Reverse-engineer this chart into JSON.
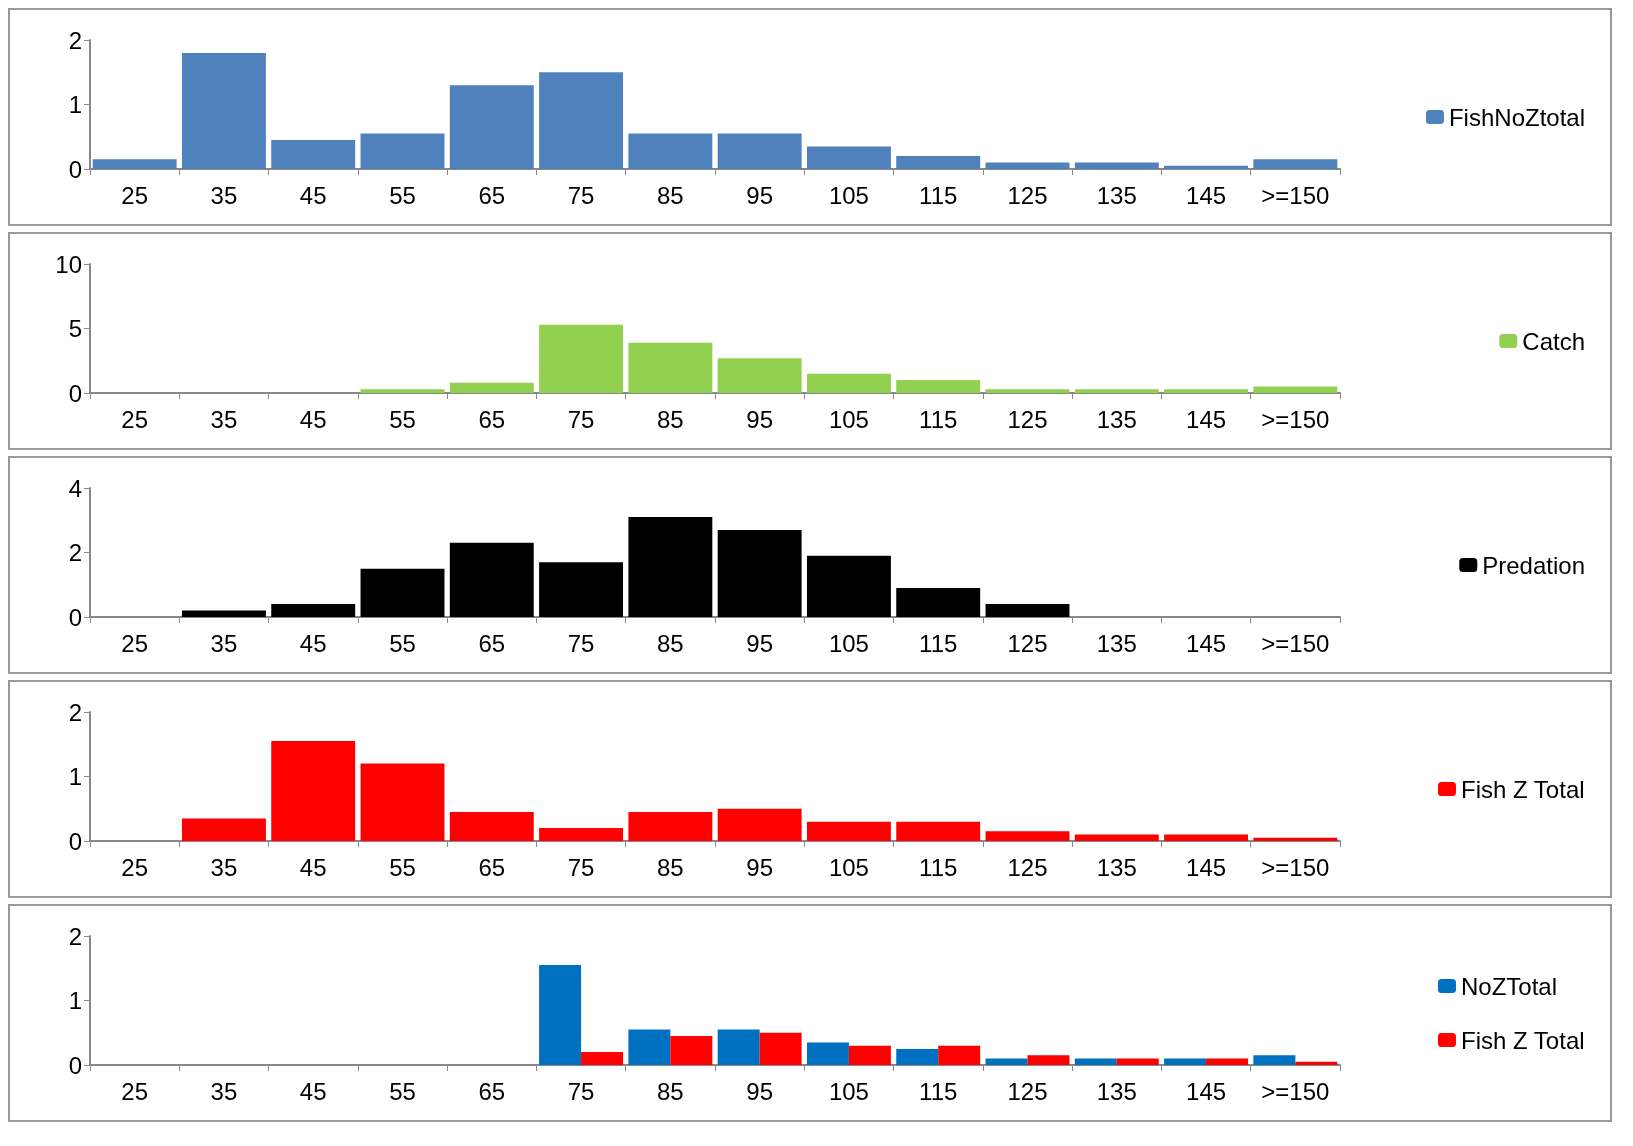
{
  "chart_data": [
    {
      "type": "bar",
      "categories": [
        "25",
        "35",
        "45",
        "55",
        "65",
        "75",
        "85",
        "95",
        "105",
        "115",
        "125",
        "135",
        "145",
        ">=150"
      ],
      "series": [
        {
          "name": "FishNoZtotal",
          "color": "#4f81bd",
          "values": [
            0.15,
            1.8,
            0.45,
            0.55,
            1.3,
            1.5,
            0.55,
            0.55,
            0.35,
            0.2,
            0.1,
            0.1,
            0.05,
            0.15
          ]
        }
      ],
      "ylim": [
        0,
        2
      ],
      "yticks": [
        0,
        1,
        2
      ],
      "grid": false,
      "legend": "right"
    },
    {
      "type": "bar",
      "categories": [
        "25",
        "35",
        "45",
        "55",
        "65",
        "75",
        "85",
        "95",
        "105",
        "115",
        "125",
        "135",
        "145",
        ">=150"
      ],
      "series": [
        {
          "name": "Catch",
          "color": "#92d050",
          "values": [
            0,
            0,
            0,
            0.3,
            0.8,
            5.3,
            3.9,
            2.7,
            1.5,
            1.0,
            0.3,
            0.3,
            0.3,
            0.5
          ]
        }
      ],
      "ylim": [
        0,
        10
      ],
      "yticks": [
        0,
        5,
        10
      ],
      "grid": false,
      "legend": "right"
    },
    {
      "type": "bar",
      "categories": [
        "25",
        "35",
        "45",
        "55",
        "65",
        "75",
        "85",
        "95",
        "105",
        "115",
        "125",
        "135",
        "145",
        ">=150"
      ],
      "series": [
        {
          "name": "Predation",
          "color": "#000000",
          "values": [
            0,
            0.2,
            0.4,
            1.5,
            2.3,
            1.7,
            3.1,
            2.7,
            1.9,
            0.9,
            0.4,
            0,
            0,
            0
          ]
        }
      ],
      "ylim": [
        0,
        4
      ],
      "yticks": [
        0,
        2,
        4
      ],
      "grid": false,
      "legend": "right"
    },
    {
      "type": "bar",
      "categories": [
        "25",
        "35",
        "45",
        "55",
        "65",
        "75",
        "85",
        "95",
        "105",
        "115",
        "125",
        "135",
        "145",
        ">=150"
      ],
      "series": [
        {
          "name": "Fish Z Total",
          "color": "#ff0000",
          "values": [
            0,
            0.35,
            1.55,
            1.2,
            0.45,
            0.2,
            0.45,
            0.5,
            0.3,
            0.3,
            0.15,
            0.1,
            0.1,
            0.05
          ]
        }
      ],
      "ylim": [
        0,
        2
      ],
      "yticks": [
        0,
        1,
        2
      ],
      "grid": false,
      "legend": "right"
    },
    {
      "type": "bar",
      "categories": [
        "25",
        "35",
        "45",
        "55",
        "65",
        "75",
        "85",
        "95",
        "105",
        "115",
        "125",
        "135",
        "145",
        ">=150"
      ],
      "series": [
        {
          "name": "NoZTotal",
          "color": "#0070c0",
          "values": [
            0,
            0,
            0,
            0,
            0,
            1.55,
            0.55,
            0.55,
            0.35,
            0.25,
            0.1,
            0.1,
            0.1,
            0.15
          ]
        },
        {
          "name": "Fish Z Total",
          "color": "#ff0000",
          "values": [
            0,
            0,
            0,
            0,
            0,
            0.2,
            0.45,
            0.5,
            0.3,
            0.3,
            0.15,
            0.1,
            0.1,
            0.05
          ]
        }
      ],
      "ylim": [
        0,
        2
      ],
      "yticks": [
        0,
        1,
        2
      ],
      "grid": false,
      "legend": "right"
    }
  ]
}
